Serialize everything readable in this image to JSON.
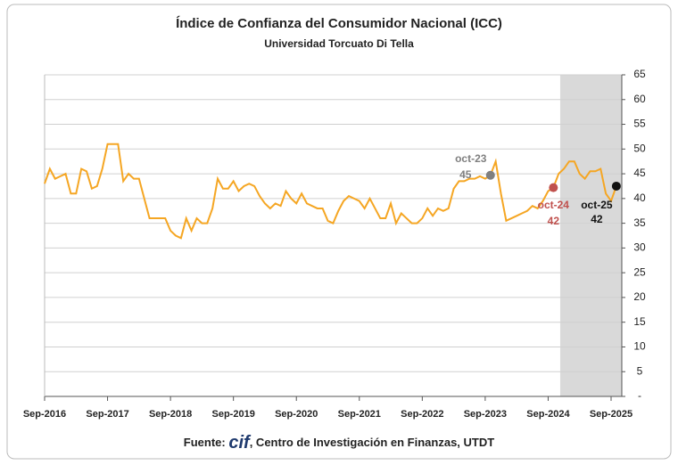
{
  "chart_data": {
    "type": "line",
    "title": "Índice de Confianza del Consumidor Nacional (ICC)",
    "subtitle": "Universidad Torcuato Di Tella",
    "source": {
      "prefix": "Fuente:",
      "logo": "cif",
      "text": ", Centro de Investigación en Finanzas, UTDT"
    },
    "categories": [
      "Sep-2016",
      null,
      null,
      null,
      null,
      null,
      null,
      null,
      null,
      null,
      null,
      null,
      "Sep-2017",
      null,
      null,
      null,
      null,
      null,
      null,
      null,
      null,
      null,
      null,
      null,
      "Sep-2018",
      null,
      null,
      null,
      null,
      null,
      null,
      null,
      null,
      null,
      null,
      null,
      "Sep-2019",
      null,
      null,
      null,
      null,
      null,
      null,
      null,
      null,
      null,
      null,
      null,
      "Sep-2020",
      null,
      null,
      null,
      null,
      null,
      null,
      null,
      null,
      null,
      null,
      null,
      "Sep-2021",
      null,
      null,
      null,
      null,
      null,
      null,
      null,
      null,
      null,
      null,
      null,
      "Sep-2022",
      null,
      null,
      null,
      null,
      null,
      null,
      null,
      null,
      null,
      null,
      null,
      "Sep-2023",
      null,
      null,
      null,
      null,
      null,
      null,
      null,
      null,
      null,
      null,
      null,
      "Sep-2024",
      null,
      null,
      null,
      null,
      null,
      null,
      null,
      null,
      null,
      null,
      null,
      "Sep-2025",
      null
    ],
    "series": [
      {
        "name": "ICC",
        "color": "#f5a623",
        "values": [
          43,
          46,
          44,
          44.5,
          45,
          41,
          41,
          46,
          45.5,
          42,
          42.5,
          46,
          51,
          51,
          51,
          43.5,
          45,
          44,
          44,
          40,
          36,
          36,
          36,
          36,
          33.5,
          32.5,
          32,
          36,
          33.5,
          36,
          35,
          35,
          38,
          44,
          42,
          42,
          43.5,
          41.5,
          42.5,
          43,
          42.5,
          40.5,
          39,
          38,
          39,
          38.5,
          41.5,
          40,
          39,
          41,
          39,
          38.5,
          38,
          38,
          35.5,
          35,
          37.5,
          39.5,
          40.5,
          40,
          39.5,
          38,
          40,
          38,
          36,
          36,
          39,
          35,
          37,
          36,
          35,
          35,
          36,
          38,
          36.5,
          38,
          37.5,
          38,
          42,
          43.5,
          43.5,
          44,
          44,
          44.5,
          44,
          44.7,
          47.5,
          41,
          35.5,
          36,
          36.5,
          37,
          37.5,
          38.5,
          38,
          39.5,
          41.5,
          42.2,
          45,
          46,
          47.5,
          47.5,
          45,
          44,
          45.5,
          45.5,
          46,
          41,
          39.5,
          42.5
        ]
      }
    ],
    "annotations": [
      {
        "label": "oct-23",
        "value": 45,
        "color": "#7f7f7f"
      },
      {
        "label": "oct-24",
        "value": 42,
        "color": "#c0504d"
      },
      {
        "label": "oct-25",
        "value": 42,
        "color": "#111111"
      }
    ],
    "ylim": [
      0,
      65
    ],
    "yticks": [
      {
        "value": 0,
        "label": "-"
      },
      5,
      10,
      15,
      20,
      25,
      30,
      35,
      40,
      45,
      50,
      55,
      60,
      65
    ],
    "grid": true
  }
}
